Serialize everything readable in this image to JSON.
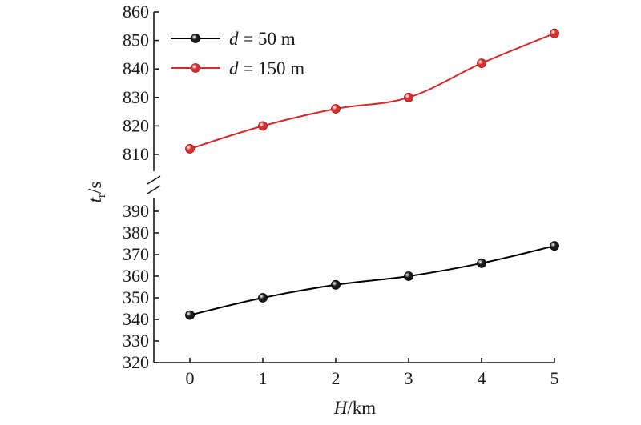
{
  "chart_data": {
    "type": "line",
    "x": [
      0,
      1,
      2,
      3,
      4,
      5
    ],
    "x_tick_labels": [
      "0",
      "1",
      "2",
      "3",
      "4",
      "5"
    ],
    "xlim": [
      -0.5,
      5
    ],
    "x_axis_title": {
      "italic": "H",
      "rest": "/km"
    },
    "y_axis_title": {
      "italic": "t",
      "subscript": "r",
      "rest": "/s"
    },
    "y_axis_break": true,
    "y_segments": [
      {
        "name": "upper",
        "ylim": [
          800,
          860
        ],
        "ticks": [
          810,
          820,
          830,
          840,
          850,
          860
        ]
      },
      {
        "name": "lower",
        "ylim": [
          320,
          397
        ],
        "ticks": [
          320,
          330,
          340,
          350,
          360,
          370,
          380,
          390
        ]
      }
    ],
    "series": [
      {
        "name": "d = 50 m",
        "name_italic": "d",
        "name_rest": " = 50 m",
        "color": "#000000",
        "marker_color": "#1a1a1a",
        "segment": "lower",
        "values": [
          342,
          350,
          356,
          360,
          366,
          374
        ]
      },
      {
        "name": "d = 150 m",
        "name_italic": "d",
        "name_rest": " = 150 m",
        "color": "#d42a2a",
        "marker_color": "#d83030",
        "segment": "upper",
        "values": [
          812,
          820,
          826,
          830,
          842,
          852.5
        ]
      }
    ],
    "legend": {
      "placement": "top-left"
    },
    "grid": false
  }
}
